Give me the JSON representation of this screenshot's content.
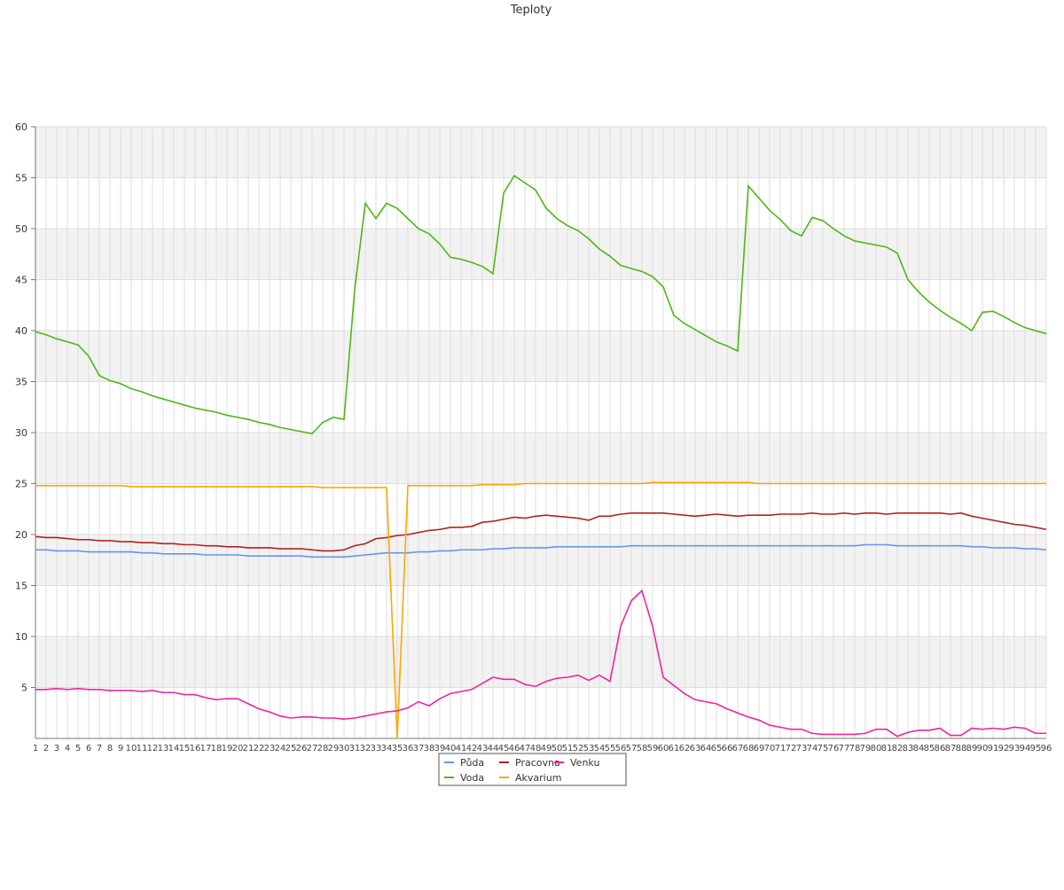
{
  "chart_data": {
    "type": "line",
    "title": "Teploty",
    "categories": [
      "1",
      "2",
      "3",
      "4",
      "5",
      "6",
      "7",
      "8",
      "9",
      "10",
      "11",
      "12",
      "13",
      "14",
      "15",
      "16",
      "17",
      "18",
      "19",
      "20",
      "21",
      "22",
      "23",
      "24",
      "25",
      "26",
      "27",
      "28",
      "29",
      "30",
      "31",
      "32",
      "33",
      "34",
      "35",
      "36",
      "37",
      "38",
      "39",
      "40",
      "41",
      "42",
      "43",
      "44",
      "45",
      "46",
      "47",
      "48",
      "49",
      "50",
      "51",
      "52",
      "53",
      "54",
      "55",
      "56",
      "57",
      "58",
      "59",
      "60",
      "61",
      "62",
      "63",
      "64",
      "65",
      "66",
      "67",
      "68",
      "69",
      "70",
      "71",
      "72",
      "73",
      "74",
      "75",
      "76",
      "77",
      "78",
      "79",
      "80",
      "81",
      "82",
      "83",
      "84",
      "85",
      "86",
      "87",
      "88",
      "89",
      "90",
      "91",
      "92",
      "93",
      "94",
      "95",
      "96"
    ],
    "series": [
      {
        "name": "Půda",
        "color": "#6495ed",
        "values": [
          18.5,
          18.5,
          18.4,
          18.4,
          18.4,
          18.3,
          18.3,
          18.3,
          18.3,
          18.3,
          18.2,
          18.2,
          18.1,
          18.1,
          18.1,
          18.1,
          18.0,
          18.0,
          18.0,
          18.0,
          17.9,
          17.9,
          17.9,
          17.9,
          17.9,
          17.9,
          17.8,
          17.8,
          17.8,
          17.8,
          17.9,
          18.0,
          18.1,
          18.2,
          18.2,
          18.2,
          18.3,
          18.3,
          18.4,
          18.4,
          18.5,
          18.5,
          18.5,
          18.6,
          18.6,
          18.7,
          18.7,
          18.7,
          18.7,
          18.8,
          18.8,
          18.8,
          18.8,
          18.8,
          18.8,
          18.8,
          18.9,
          18.9,
          18.9,
          18.9,
          18.9,
          18.9,
          18.9,
          18.9,
          18.9,
          18.9,
          18.9,
          18.9,
          18.9,
          18.9,
          18.9,
          18.9,
          18.9,
          18.9,
          18.9,
          18.9,
          18.9,
          18.9,
          19.0,
          19.0,
          19.0,
          18.9,
          18.9,
          18.9,
          18.9,
          18.9,
          18.9,
          18.9,
          18.8,
          18.8,
          18.7,
          18.7,
          18.7,
          18.6,
          18.6,
          18.5
        ]
      },
      {
        "name": "Voda",
        "color": "#4cb814",
        "values": [
          39.9,
          39.6,
          39.2,
          38.9,
          38.6,
          37.5,
          35.6,
          35.1,
          34.8,
          34.3,
          34.0,
          33.6,
          33.3,
          33.0,
          32.7,
          32.4,
          32.2,
          32.0,
          31.7,
          31.5,
          31.3,
          31.0,
          30.8,
          30.5,
          30.3,
          30.1,
          29.9,
          31.0,
          31.5,
          31.3,
          44.0,
          52.5,
          51.0,
          52.5,
          52.0,
          51.0,
          50.0,
          49.5,
          48.5,
          47.2,
          47.0,
          46.7,
          46.3,
          45.6,
          53.5,
          55.2,
          54.5,
          53.8,
          52.0,
          51.0,
          50.3,
          49.8,
          49.0,
          48.0,
          47.3,
          46.4,
          46.1,
          45.8,
          45.3,
          44.3,
          41.5,
          40.7,
          40.1,
          39.5,
          38.9,
          38.5,
          38.0,
          54.2,
          53.0,
          51.8,
          50.9,
          49.8,
          49.3,
          51.1,
          50.8,
          50.0,
          49.3,
          48.8,
          48.6,
          48.4,
          48.2,
          47.6,
          45.0,
          43.8,
          42.8,
          42.0,
          41.3,
          40.7,
          40.0,
          41.8,
          41.9,
          41.4,
          40.8,
          40.3,
          40.0,
          39.7
        ]
      },
      {
        "name": "Pracovna",
        "color": "#b22222",
        "values": [
          19.8,
          19.7,
          19.7,
          19.6,
          19.5,
          19.5,
          19.4,
          19.4,
          19.3,
          19.3,
          19.2,
          19.2,
          19.1,
          19.1,
          19.0,
          19.0,
          18.9,
          18.9,
          18.8,
          18.8,
          18.7,
          18.7,
          18.7,
          18.6,
          18.6,
          18.6,
          18.5,
          18.4,
          18.4,
          18.5,
          18.9,
          19.1,
          19.6,
          19.7,
          19.9,
          20.0,
          20.2,
          20.4,
          20.5,
          20.7,
          20.7,
          20.8,
          21.2,
          21.3,
          21.5,
          21.7,
          21.6,
          21.8,
          21.9,
          21.8,
          21.7,
          21.6,
          21.4,
          21.8,
          21.8,
          22.0,
          22.1,
          22.1,
          22.1,
          22.1,
          22.0,
          21.9,
          21.8,
          21.9,
          22.0,
          21.9,
          21.8,
          21.9,
          21.9,
          21.9,
          22.0,
          22.0,
          22.0,
          22.1,
          22.0,
          22.0,
          22.1,
          22.0,
          22.1,
          22.1,
          22.0,
          22.1,
          22.1,
          22.1,
          22.1,
          22.1,
          22.0,
          22.1,
          21.8,
          21.6,
          21.4,
          21.2,
          21.0,
          20.9,
          20.7,
          20.5
        ]
      },
      {
        "name": "Akvarium",
        "color": "#ffa500",
        "values": [
          24.8,
          24.8,
          24.8,
          24.8,
          24.8,
          24.8,
          24.8,
          24.8,
          24.8,
          24.7,
          24.7,
          24.7,
          24.7,
          24.7,
          24.7,
          24.7,
          24.7,
          24.7,
          24.7,
          24.7,
          24.7,
          24.7,
          24.7,
          24.7,
          24.7,
          24.7,
          24.7,
          24.6,
          24.6,
          24.6,
          24.6,
          24.6,
          24.6,
          24.6,
          0,
          24.8,
          24.8,
          24.8,
          24.8,
          24.8,
          24.8,
          24.8,
          24.9,
          24.9,
          24.9,
          24.9,
          25.0,
          25.0,
          25.0,
          25.0,
          25.0,
          25.0,
          25.0,
          25.0,
          25.0,
          25.0,
          25.0,
          25.0,
          25.1,
          25.1,
          25.1,
          25.1,
          25.1,
          25.1,
          25.1,
          25.1,
          25.1,
          25.1,
          25.0,
          25.0,
          25.0,
          25.0,
          25.0,
          25.0,
          25.0,
          25.0,
          25.0,
          25.0,
          25.0,
          25.0,
          25.0,
          25.0,
          25.0,
          25.0,
          25.0,
          25.0,
          25.0,
          25.0,
          25.0,
          25.0,
          25.0,
          25.0,
          25.0,
          25.0,
          25.0,
          25.0
        ]
      },
      {
        "name": "Venku",
        "color": "#f0249c",
        "values": [
          4.8,
          4.8,
          4.9,
          4.8,
          4.9,
          4.8,
          4.8,
          4.7,
          4.7,
          4.7,
          4.6,
          4.7,
          4.5,
          4.5,
          4.3,
          4.3,
          4.0,
          3.8,
          3.9,
          3.9,
          3.4,
          2.9,
          2.6,
          2.2,
          2.0,
          2.1,
          2.1,
          2.0,
          2.0,
          1.9,
          2.0,
          2.2,
          2.4,
          2.6,
          2.7,
          3.0,
          3.6,
          3.2,
          3.9,
          4.4,
          4.6,
          4.8,
          5.4,
          6.0,
          5.8,
          5.8,
          5.3,
          5.1,
          5.6,
          5.9,
          6.0,
          6.2,
          5.7,
          6.2,
          5.6,
          11.0,
          13.5,
          14.5,
          11.0,
          6.0,
          5.2,
          4.4,
          3.8,
          3.6,
          3.4,
          2.9,
          2.5,
          2.1,
          1.8,
          1.3,
          1.1,
          0.9,
          0.9,
          0.5,
          0.4,
          0.4,
          0.4,
          0.4,
          0.5,
          0.9,
          0.9,
          0.2,
          0.6,
          0.8,
          0.8,
          1.0,
          0.3,
          0.3,
          1.0,
          0.9,
          1.0,
          0.9,
          1.1,
          1.0,
          0.5,
          0.5
        ]
      }
    ],
    "ylim": [
      0,
      60
    ],
    "yticks": [
      5,
      10,
      15,
      20,
      25,
      30,
      35,
      40,
      45,
      50,
      55,
      60
    ],
    "grid": true
  }
}
